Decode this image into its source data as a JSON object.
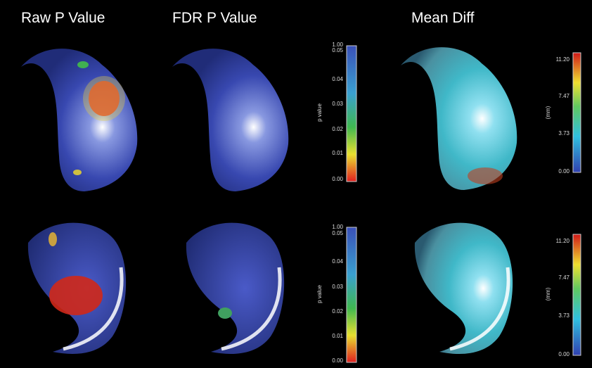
{
  "headers": {
    "raw": "Raw P Value",
    "fdr": "FDR P Value",
    "mean": "Mean Diff"
  },
  "colorbars": [
    {
      "label": "p value",
      "ticks": [
        "1.00",
        "0.05",
        "0.04",
        "0.03",
        "0.02",
        "0.01",
        "0.00"
      ]
    },
    {
      "label": "(mm)",
      "ticks": [
        "11.20",
        "7.47",
        "3.73",
        "0.00"
      ]
    },
    {
      "label": "p value",
      "ticks": [
        "1.00",
        "0.05",
        "0.04",
        "0.03",
        "0.02",
        "0.01",
        "0.00"
      ]
    },
    {
      "label": "(mm)",
      "ticks": [
        "11.20",
        "7.47",
        "3.73",
        "0.00"
      ]
    }
  ]
}
